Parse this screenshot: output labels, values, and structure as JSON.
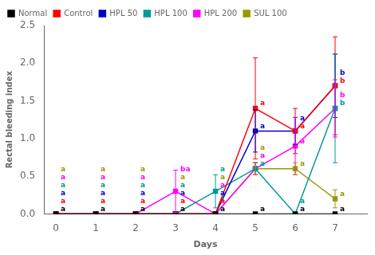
{
  "chart_data": {
    "type": "line",
    "xlabel": "Days",
    "ylabel": "Rectal bleeding index",
    "x": [
      0,
      1,
      2,
      3,
      4,
      5,
      6,
      7
    ],
    "xlim": [
      -0.3,
      7.8
    ],
    "xticks": [
      0,
      1,
      2,
      3,
      4,
      5,
      6,
      7
    ],
    "ylim": [
      0.0,
      2.5
    ],
    "yticks": [
      {
        "value": 0.0,
        "label": "0.0"
      },
      0.5,
      {
        "value": 1.0,
        "label": "1.0"
      },
      1.5,
      {
        "value": 2.0,
        "label": "2.0"
      },
      2.5
    ],
    "grid": false,
    "legend": "upper left",
    "series": [
      {
        "name": "Normal",
        "color": "#000000",
        "marker": "square",
        "values": [
          0.0,
          0.0,
          0.0,
          0.0,
          0.0,
          0.0,
          0.0,
          0.0
        ],
        "errors": [
          0.0,
          0.0,
          0.0,
          0.0,
          0.0,
          0.0,
          0.0,
          0.0
        ],
        "annotations": [
          "a",
          "a",
          "a",
          "a",
          "a",
          "a",
          "a",
          "a"
        ]
      },
      {
        "name": "Control",
        "color": "#ff0000",
        "marker": "square",
        "values": [
          0.0,
          0.0,
          0.0,
          0.0,
          0.0,
          1.4,
          1.1,
          1.7
        ],
        "errors": [
          0.0,
          0.0,
          0.0,
          0.0,
          0.0,
          0.67,
          0.3,
          0.65
        ],
        "annotations": [
          "a",
          "a",
          "a",
          "a",
          "a",
          "a",
          "a",
          "b"
        ]
      },
      {
        "name": "HPL 50",
        "color": "#0000cc",
        "marker": "square",
        "values": [
          0.0,
          0.0,
          0.0,
          0.0,
          0.0,
          1.1,
          1.1,
          1.7
        ],
        "errors": [
          0.0,
          0.0,
          0.0,
          0.0,
          0.0,
          0.28,
          0.18,
          0.42
        ],
        "annotations": [
          "a",
          "a",
          "a",
          "a",
          "a",
          "a",
          "a",
          "b"
        ]
      },
      {
        "name": "HPL 100",
        "color": "#009999",
        "marker": "square",
        "values": [
          0.0,
          0.0,
          0.0,
          0.0,
          0.3,
          0.6,
          0.0,
          1.4
        ],
        "errors": [
          0.0,
          0.0,
          0.0,
          0.0,
          0.22,
          0.08,
          0.0,
          0.72
        ],
        "annotations": [
          "a",
          "a",
          "a",
          "a",
          "a",
          "a",
          "a",
          "b"
        ]
      },
      {
        "name": "HPL 200",
        "color": "#ff00ff",
        "marker": "square",
        "values": [
          0.0,
          0.0,
          0.0,
          0.3,
          0.0,
          0.6,
          0.9,
          1.4
        ],
        "errors": [
          0.0,
          0.0,
          0.0,
          0.28,
          0.0,
          0.08,
          0.38,
          0.38
        ],
        "annotations": [
          "a",
          "a",
          "a",
          "ba",
          "a",
          "a",
          "a",
          "b"
        ]
      },
      {
        "name": "SUL 100",
        "color": "#999900",
        "marker": "square",
        "values": [
          0.0,
          0.0,
          0.0,
          0.0,
          0.0,
          0.6,
          0.6,
          0.2
        ],
        "errors": [
          0.0,
          0.0,
          0.0,
          0.0,
          0.0,
          0.08,
          0.08,
          0.12
        ],
        "annotations": [
          "a",
          "a",
          "a",
          "a",
          "a",
          "a",
          "a",
          "a"
        ]
      }
    ]
  }
}
